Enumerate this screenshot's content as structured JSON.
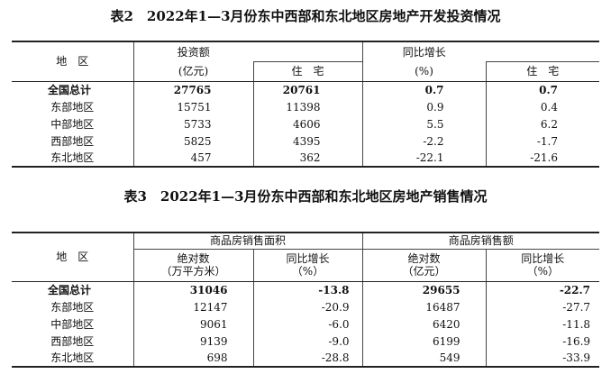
{
  "table2": {
    "title": "表2　2022年1—3月份东中西部和东北地区房地产开发投资情况",
    "header": {
      "region": "地　区",
      "investment": "投资额",
      "investment_unit": "(亿元)",
      "residential": "住　宅",
      "yoy": "同比增长",
      "yoy_unit": "(%)",
      "residential2": "住　宅"
    },
    "rows": [
      {
        "name": "全国总计",
        "inv": "27765",
        "res": "20761",
        "yoy": "0.7",
        "res_yoy": "0.7"
      },
      {
        "name": "东部地区",
        "inv": "15751",
        "res": "11398",
        "yoy": "0.9",
        "res_yoy": "0.4"
      },
      {
        "name": "中部地区",
        "inv": "5733",
        "res": "4606",
        "yoy": "5.5",
        "res_yoy": "6.2"
      },
      {
        "name": "西部地区",
        "inv": "5825",
        "res": "4395",
        "yoy": "-2.2",
        "res_yoy": "-1.7"
      },
      {
        "name": "东北地区",
        "inv": "457",
        "res": "362",
        "yoy": "-22.1",
        "res_yoy": "-21.6"
      }
    ]
  },
  "table3": {
    "title": "表3　2022年1—3月份东中西部和东北地区房地产销售情况",
    "header": {
      "region": "地　区",
      "area_group": "商品房销售面积",
      "area_abs": "绝对数",
      "area_unit": "（万平方米）",
      "area_yoy": "同比增长",
      "area_yoy_unit": "（%）",
      "sales_group": "商品房销售额",
      "sales_abs": "绝对数",
      "sales_unit": "（亿元）",
      "sales_yoy": "同比增长",
      "sales_yoy_unit": "（%）"
    },
    "rows": [
      {
        "name": "全国总计",
        "area": "31046",
        "area_yoy": "-13.8",
        "sales": "29655",
        "sales_yoy": "-22.7"
      },
      {
        "name": "东部地区",
        "area": "12147",
        "area_yoy": "-20.9",
        "sales": "16487",
        "sales_yoy": "-27.7"
      },
      {
        "name": "中部地区",
        "area": "9061",
        "area_yoy": "-6.0",
        "sales": "6420",
        "sales_yoy": "-11.8"
      },
      {
        "name": "西部地区",
        "area": "9139",
        "area_yoy": "-9.0",
        "sales": "6199",
        "sales_yoy": "-16.9"
      },
      {
        "name": "东北地区",
        "area": "698",
        "area_yoy": "-28.8",
        "sales": "549",
        "sales_yoy": "-33.9"
      }
    ]
  }
}
